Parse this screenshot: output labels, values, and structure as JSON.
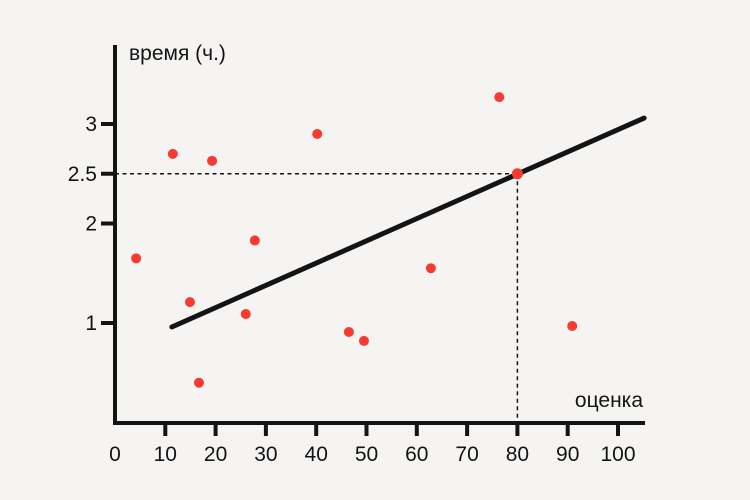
{
  "chart_data": {
    "type": "scatter",
    "title": "",
    "xlabel": "оценка",
    "ylabel": "время (ч.)",
    "x_ticks": [
      0,
      10,
      20,
      30,
      40,
      50,
      60,
      70,
      80,
      90,
      100
    ],
    "y_ticks": [
      1,
      2,
      2.5,
      3
    ],
    "xlim": [
      0,
      105.5
    ],
    "ylim": [
      0,
      3.8
    ],
    "grid": false,
    "points": [
      {
        "x": 4.2,
        "y": 1.65
      },
      {
        "x": 11.5,
        "y": 2.7
      },
      {
        "x": 19.3,
        "y": 2.63
      },
      {
        "x": 27.8,
        "y": 1.83
      },
      {
        "x": 40.2,
        "y": 2.9
      },
      {
        "x": 14.9,
        "y": 1.21
      },
      {
        "x": 26.0,
        "y": 1.09
      },
      {
        "x": 46.5,
        "y": 0.91
      },
      {
        "x": 49.5,
        "y": 0.82
      },
      {
        "x": 16.7,
        "y": 0.4
      },
      {
        "x": 62.8,
        "y": 1.55
      },
      {
        "x": 90.9,
        "y": 0.97
      },
      {
        "x": 76.4,
        "y": 3.27
      }
    ],
    "highlight_point": {
      "x": 80,
      "y": 2.5
    },
    "trendline": {
      "x1": 11.3,
      "y1": 0.96,
      "x2": 105.2,
      "y2": 3.06
    },
    "guides": {
      "x": 80,
      "y": 2.5,
      "x_label": "80",
      "y_label": "2.5"
    },
    "colors": {
      "background": "#f5f4f2",
      "axis": "#141414",
      "line": "#141414",
      "point": "#f93a30"
    }
  }
}
